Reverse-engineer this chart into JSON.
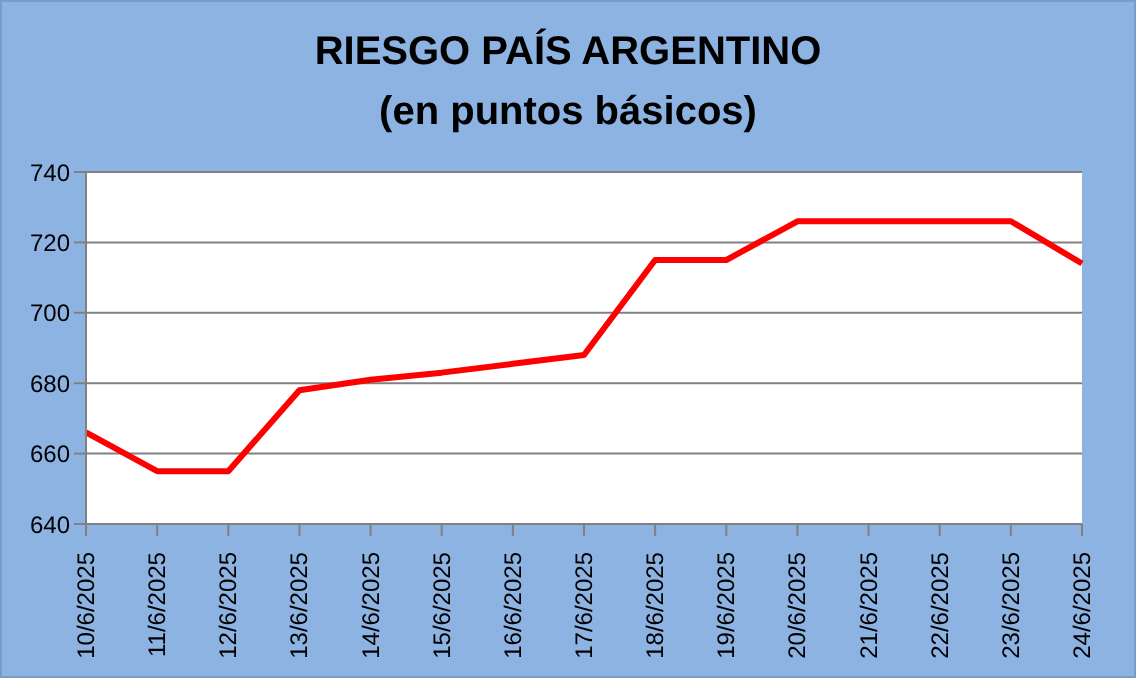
{
  "chart_data": {
    "type": "line",
    "title": "RIESGO PAÍS ARGENTINO",
    "subtitle": "(en puntos básicos)",
    "categories": [
      "10/6/2025",
      "11/6/2025",
      "12/6/2025",
      "13/6/2025",
      "14/6/2025",
      "15/6/2025",
      "16/6/2025",
      "17/6/2025",
      "18/6/2025",
      "19/6/2025",
      "20/6/2025",
      "21/6/2025",
      "22/6/2025",
      "23/6/2025",
      "24/6/2025"
    ],
    "series": [
      {
        "color": "#ff0000",
        "values": [
          666,
          655,
          655,
          678,
          681,
          683,
          685.5,
          688,
          715,
          715,
          726,
          726,
          726,
          726,
          714
        ]
      }
    ],
    "ylim": [
      640,
      740
    ],
    "yticks": [
      640,
      660,
      680,
      700,
      720,
      740
    ],
    "grid": "y",
    "legend": false,
    "marker": "none",
    "line_style": "solid"
  }
}
